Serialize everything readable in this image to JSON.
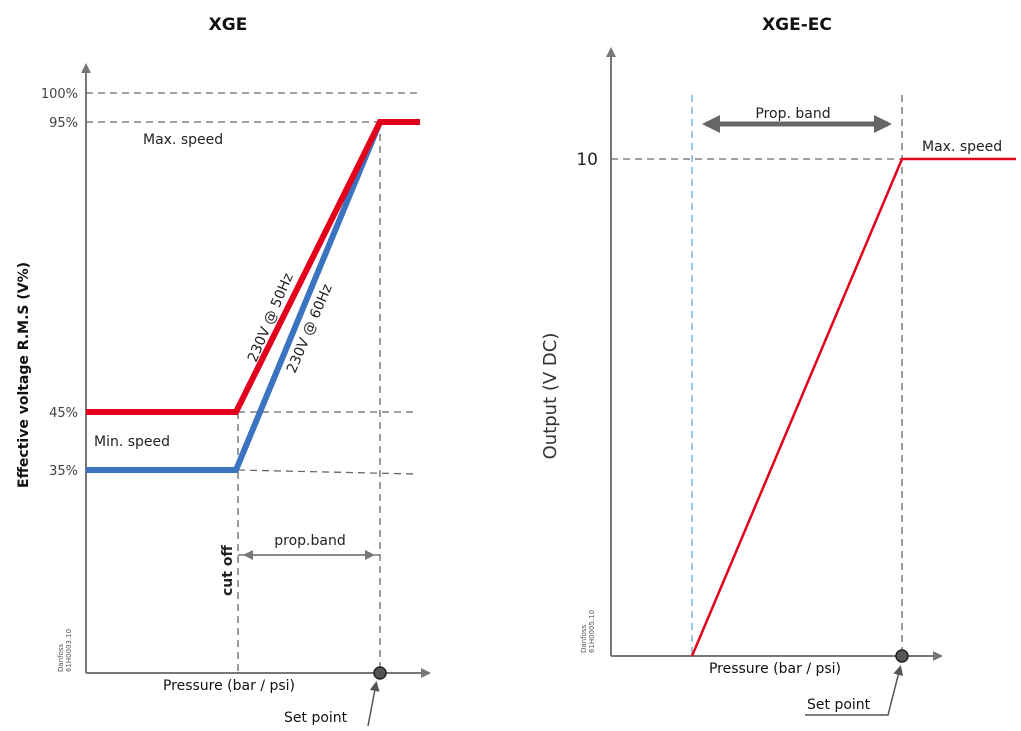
{
  "chart_data": [
    {
      "type": "line",
      "title": "XGE",
      "xlabel": "Pressure (bar / psi)",
      "ylabel": "Effective voltage R.M.S (V%)",
      "y_ticks": [
        "100%",
        "95%",
        "45%",
        "35%"
      ],
      "annotations": {
        "max_speed": "Max. speed",
        "min_speed": "Min. speed",
        "cut_off": "cut off",
        "prop_band": "prop.band",
        "set_point": "Set point",
        "code": [
          "Danfoss",
          "61H0003.10"
        ]
      },
      "series": [
        {
          "name": "230V @ 50Hz",
          "color": "#e3001b",
          "y_min": 45,
          "y_max": 95
        },
        {
          "name": "230V @ 60Hz",
          "color": "#3a73c0",
          "y_min": 35,
          "y_max": 95
        }
      ]
    },
    {
      "type": "line",
      "title": "XGE-EC",
      "xlabel": "Pressure (bar / psi)",
      "ylabel": "Output  (V DC)",
      "y_ticks": [
        "10"
      ],
      "annotations": {
        "prop_band": "Prop. band",
        "max_speed": "Max. speed",
        "set_point": "Set point",
        "code": [
          "Danfoss",
          "61H0005.10"
        ]
      },
      "series": [
        {
          "color": "#e3001b",
          "y_min": 0,
          "y_max": 10
        }
      ]
    }
  ]
}
